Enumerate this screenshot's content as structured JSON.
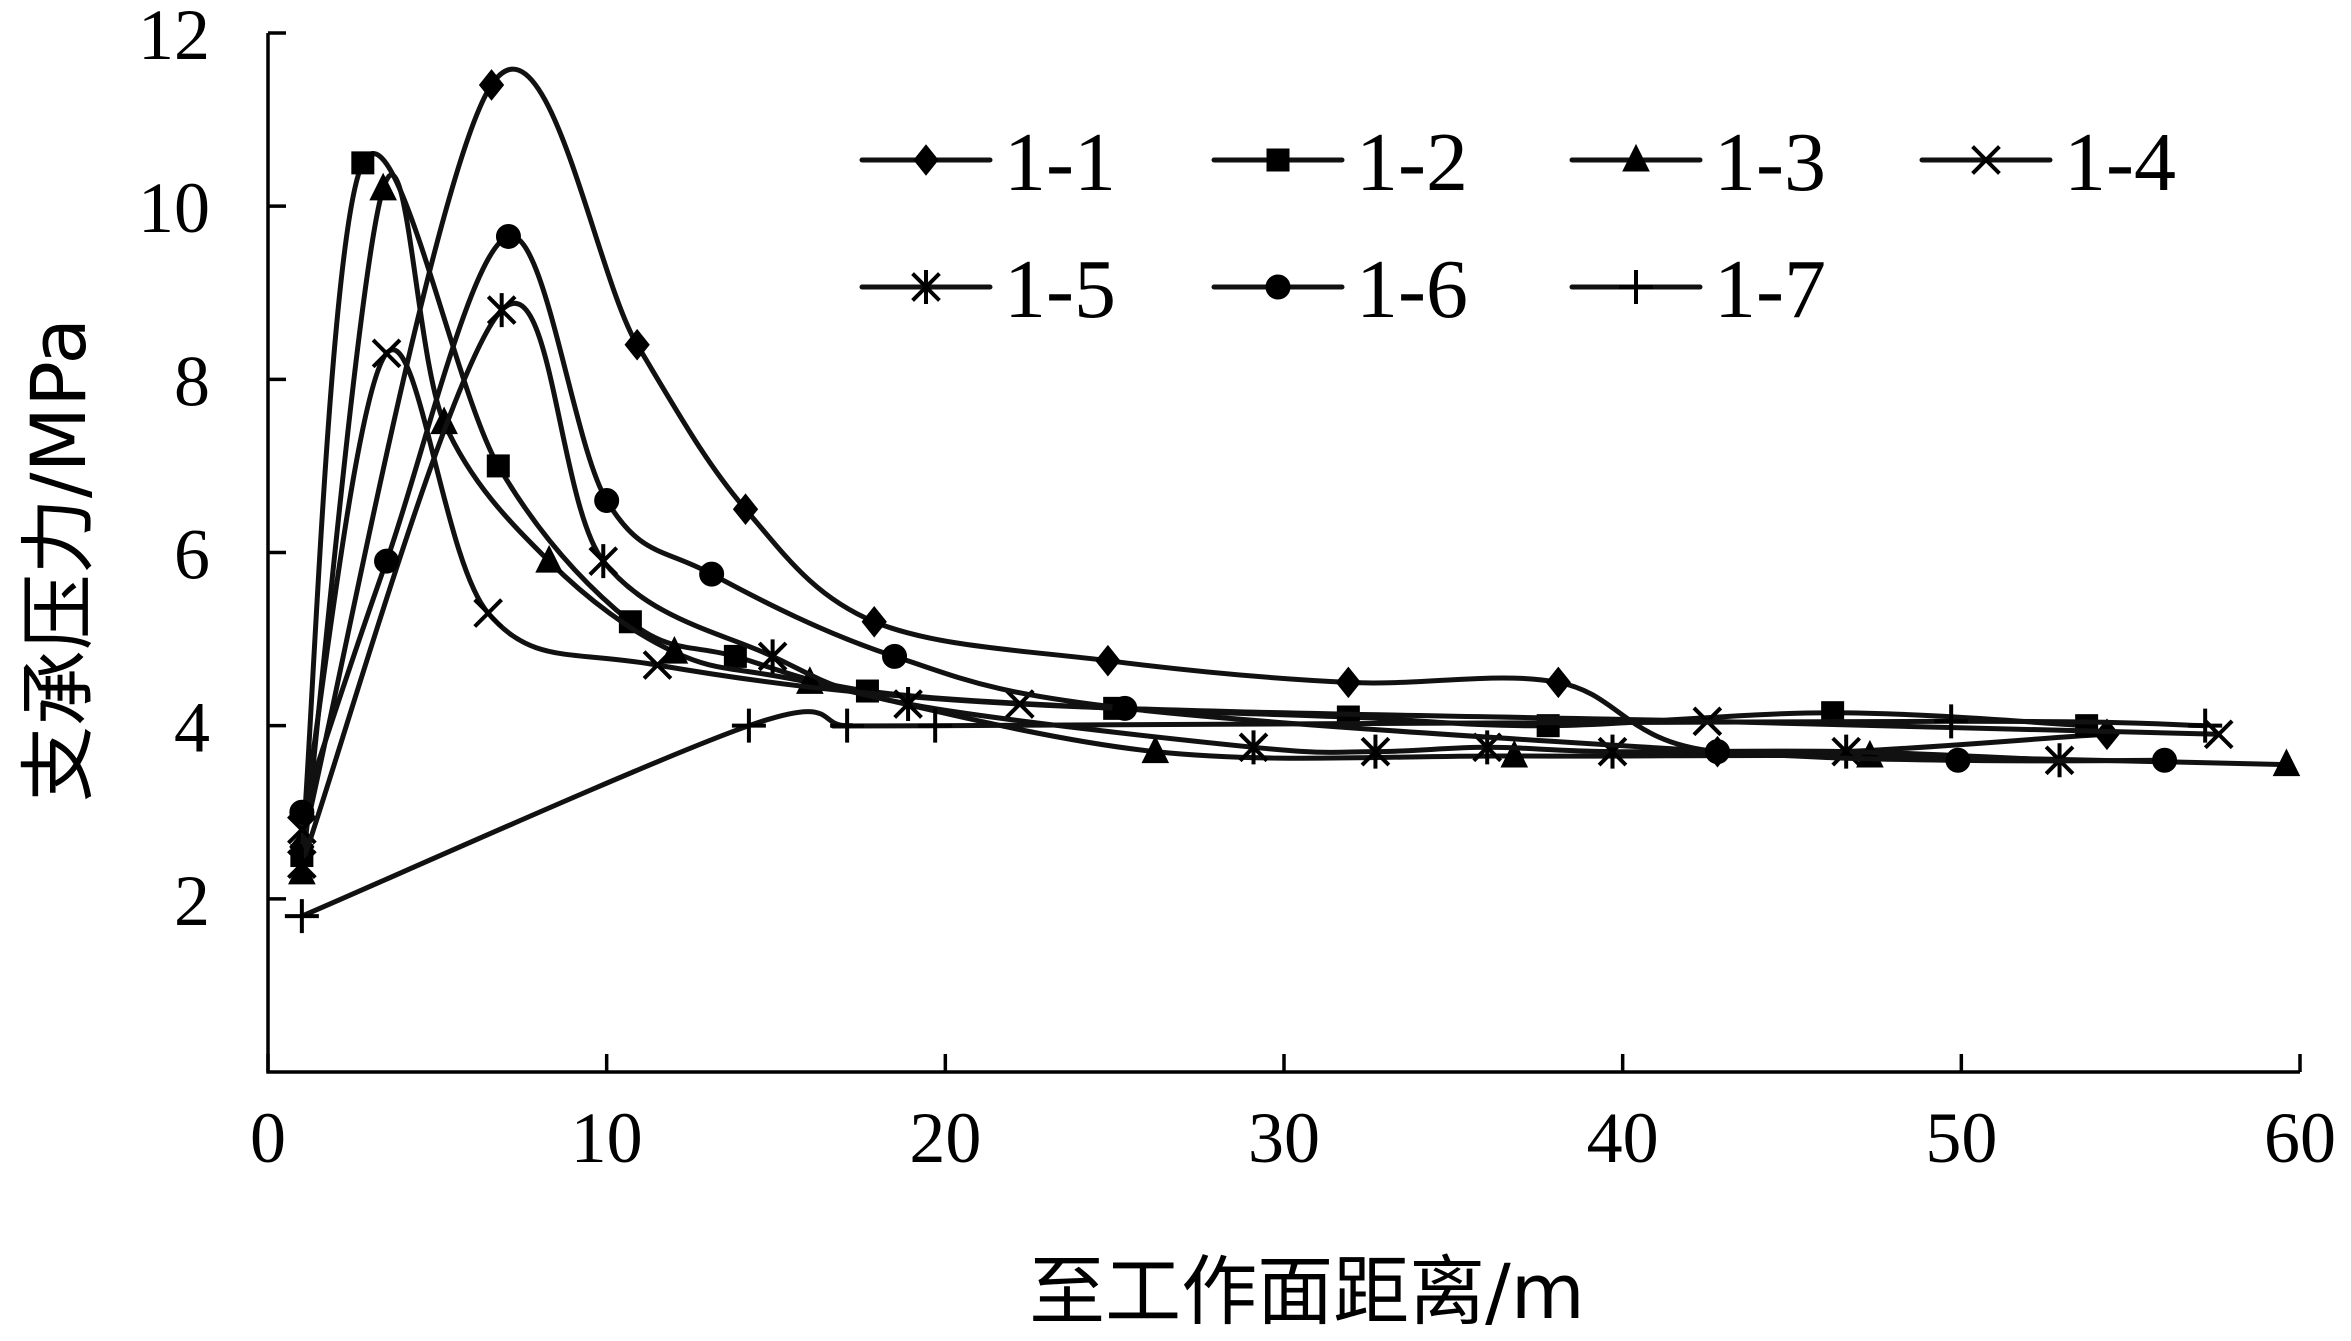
{
  "chart_data": {
    "type": "line",
    "xlabel": "至工作面距离/m",
    "ylabel": "支承压力/MPa",
    "xlim": [
      0,
      60
    ],
    "ylim": [
      0,
      12
    ],
    "xticks": [
      0,
      10,
      20,
      30,
      40,
      50,
      60
    ],
    "yticks": [
      2,
      4,
      6,
      8,
      10,
      12
    ],
    "x_tick_labels": [
      "0",
      "10",
      "20",
      "30",
      "40",
      "50",
      "60"
    ],
    "y_tick_labels": [
      "2",
      "4",
      "6",
      "8",
      "10",
      "12"
    ],
    "grid": false,
    "legend_position": "top-right",
    "series": [
      {
        "name": "1-1",
        "marker": "diamond",
        "x": [
          1,
          6.6,
          10.9,
          14.1,
          17.9,
          24.8,
          31.9,
          38.1,
          42.8,
          54.3
        ],
        "y": [
          2.6,
          11.4,
          8.4,
          6.5,
          5.2,
          4.75,
          4.5,
          4.5,
          3.7,
          3.9
        ]
      },
      {
        "name": "1-2",
        "marker": "square",
        "x": [
          1,
          2.8,
          6.8,
          10.7,
          13.8,
          17.7,
          25,
          31.9,
          37.8,
          46.2,
          53.7
        ],
        "y": [
          2.5,
          10.5,
          7.0,
          5.2,
          4.8,
          4.4,
          4.2,
          4.1,
          4.0,
          4.15,
          4.0
        ]
      },
      {
        "name": "1-3",
        "marker": "triangle",
        "x": [
          1,
          3.4,
          5.2,
          8.3,
          12,
          16,
          26.2,
          36.8,
          47.3,
          59.6
        ],
        "y": [
          2.3,
          10.2,
          7.5,
          5.9,
          4.85,
          4.5,
          3.7,
          3.65,
          3.65,
          3.55
        ]
      },
      {
        "name": "1-4",
        "marker": "x",
        "x": [
          1,
          3.5,
          6.5,
          11.5,
          22.2,
          42.5,
          57.6
        ],
        "y": [
          2.8,
          8.3,
          5.3,
          4.7,
          4.25,
          4.05,
          3.9
        ]
      },
      {
        "name": "1-5",
        "marker": "asterisk",
        "x": [
          1,
          6.9,
          9.9,
          14.9,
          18.9,
          29.1,
          32.7,
          36,
          39.7,
          46.6,
          52.9
        ],
        "y": [
          2.4,
          8.8,
          5.9,
          4.8,
          4.25,
          3.75,
          3.7,
          3.75,
          3.7,
          3.7,
          3.6
        ]
      },
      {
        "name": "1-6",
        "marker": "circle",
        "x": [
          1,
          3.5,
          7.1,
          10,
          13.1,
          18.5,
          25.3,
          42.8,
          49.9,
          56
        ],
        "y": [
          3.0,
          5.9,
          9.65,
          6.6,
          5.75,
          4.8,
          4.2,
          3.7,
          3.6,
          3.6
        ]
      },
      {
        "name": "1-7",
        "marker": "plus",
        "x": [
          1,
          14.2,
          17.1,
          19.7,
          49.7,
          57.2
        ],
        "y": [
          1.8,
          4.0,
          4.0,
          4.0,
          4.05,
          4.0
        ]
      }
    ]
  }
}
